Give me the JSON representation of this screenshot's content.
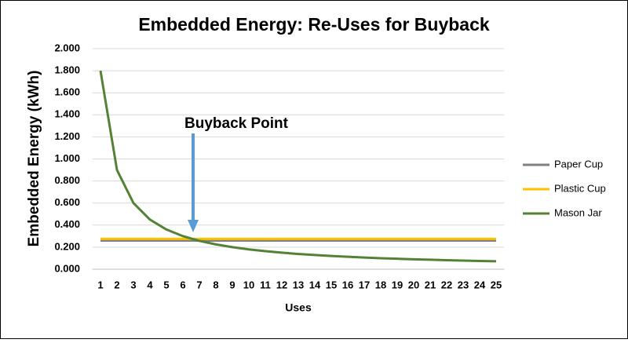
{
  "chart_data": {
    "type": "line",
    "title": "Embedded Energy: Re-Uses for Buyback",
    "x_label": "Uses",
    "y_label": "Embedded Energy (kWh)",
    "annotation": "Buyback Point",
    "categories": [
      1,
      2,
      3,
      4,
      5,
      6,
      7,
      8,
      9,
      10,
      11,
      12,
      13,
      14,
      15,
      16,
      17,
      18,
      19,
      20,
      21,
      22,
      23,
      24,
      25
    ],
    "series": [
      {
        "name": "Paper Cup",
        "color": "#808080",
        "values": [
          0.26,
          0.26,
          0.26,
          0.26,
          0.26,
          0.26,
          0.26,
          0.26,
          0.26,
          0.26,
          0.26,
          0.26,
          0.26,
          0.26,
          0.26,
          0.26,
          0.26,
          0.26,
          0.26,
          0.26,
          0.26,
          0.26,
          0.26,
          0.26,
          0.26
        ]
      },
      {
        "name": "Plastic Cup",
        "color": "#ffc000",
        "values": [
          0.275,
          0.275,
          0.275,
          0.275,
          0.275,
          0.275,
          0.275,
          0.275,
          0.275,
          0.275,
          0.275,
          0.275,
          0.275,
          0.275,
          0.275,
          0.275,
          0.275,
          0.275,
          0.275,
          0.275,
          0.275,
          0.275,
          0.275,
          0.275,
          0.275
        ]
      },
      {
        "name": "Mason Jar",
        "color": "#548235",
        "values": [
          1.8,
          0.9,
          0.6,
          0.45,
          0.36,
          0.3,
          0.257,
          0.225,
          0.2,
          0.18,
          0.164,
          0.15,
          0.138,
          0.129,
          0.12,
          0.113,
          0.106,
          0.1,
          0.095,
          0.09,
          0.086,
          0.082,
          0.078,
          0.075,
          0.072
        ]
      }
    ],
    "ylim": [
      0,
      2
    ],
    "yticks": [
      {
        "value": 0,
        "label": "0.000"
      },
      {
        "value": 0.2,
        "label": "0.200"
      },
      {
        "value": 0.4,
        "label": "0.400"
      },
      {
        "value": 0.6,
        "label": "0.600"
      },
      {
        "value": 0.8,
        "label": "0.800"
      },
      {
        "value": 1,
        "label": "1.000"
      },
      {
        "value": 1.2,
        "label": "1.200"
      },
      {
        "value": 1.4,
        "label": "1.400"
      },
      {
        "value": 1.6,
        "label": "1.600"
      },
      {
        "value": 1.8,
        "label": "1.800"
      },
      {
        "value": 2,
        "label": "2.000"
      }
    ],
    "grid": true,
    "legend": "right"
  }
}
